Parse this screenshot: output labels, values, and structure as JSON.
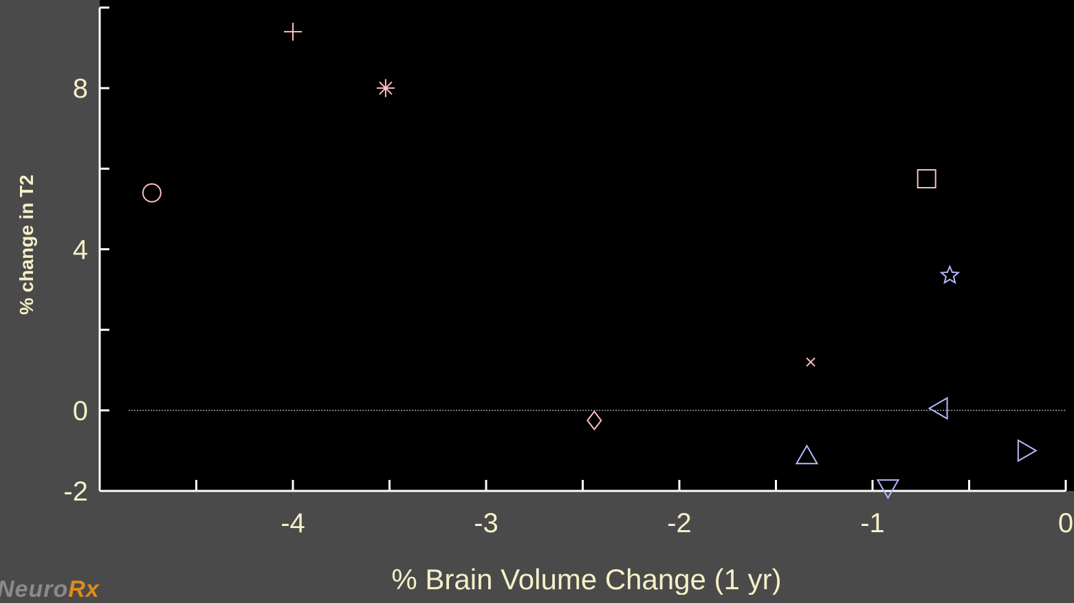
{
  "logo": {
    "text": "Neuro",
    "accent": "Rx"
  },
  "chart_data": {
    "type": "scatter",
    "xlabel": "% Brain Volume Change (1 yr)",
    "ylabel": "% change in T2",
    "xlim": [
      -5,
      0
    ],
    "ylim": [
      -2,
      10
    ],
    "x_ticks_major": [
      -4,
      -3,
      -2,
      -1,
      0
    ],
    "x_ticks_minor": [
      -4.5,
      -3.5,
      -2.5,
      -1.5,
      -0.5
    ],
    "y_ticks_labeled": [
      -2,
      0,
      4,
      8
    ],
    "y_ticks_all": [
      -2,
      0,
      2,
      4,
      6,
      8
    ],
    "reference_line": {
      "y": 0,
      "style": "dotted"
    },
    "colors": {
      "pink": "#ffc0c0",
      "blue": "#b8b8ff",
      "axis": "#ffffff",
      "tick_text": "#f5f0c8",
      "plot_bg": "#000000"
    },
    "points": [
      {
        "marker": "circle",
        "x": -4.73,
        "y": 5.4,
        "color": "pink"
      },
      {
        "marker": "plus",
        "x": -4.0,
        "y": 9.4,
        "color": "pink"
      },
      {
        "marker": "asterisk",
        "x": -3.52,
        "y": 8.0,
        "color": "pink"
      },
      {
        "marker": "diamond",
        "x": -2.44,
        "y": -0.25,
        "color": "pink"
      },
      {
        "marker": "x",
        "x": -1.32,
        "y": 1.2,
        "color": "pink"
      },
      {
        "marker": "square",
        "x": -0.72,
        "y": 5.75,
        "color": "pink"
      },
      {
        "marker": "pentagram",
        "x": -0.6,
        "y": 3.35,
        "color": "blue"
      },
      {
        "marker": "triangle-left",
        "x": -0.66,
        "y": 0.05,
        "color": "blue"
      },
      {
        "marker": "triangle-up",
        "x": -1.34,
        "y": -1.1,
        "color": "blue"
      },
      {
        "marker": "triangle-down",
        "x": -0.92,
        "y": -1.95,
        "color": "blue"
      },
      {
        "marker": "triangle-right",
        "x": -0.2,
        "y": -1.0,
        "color": "blue"
      }
    ]
  }
}
